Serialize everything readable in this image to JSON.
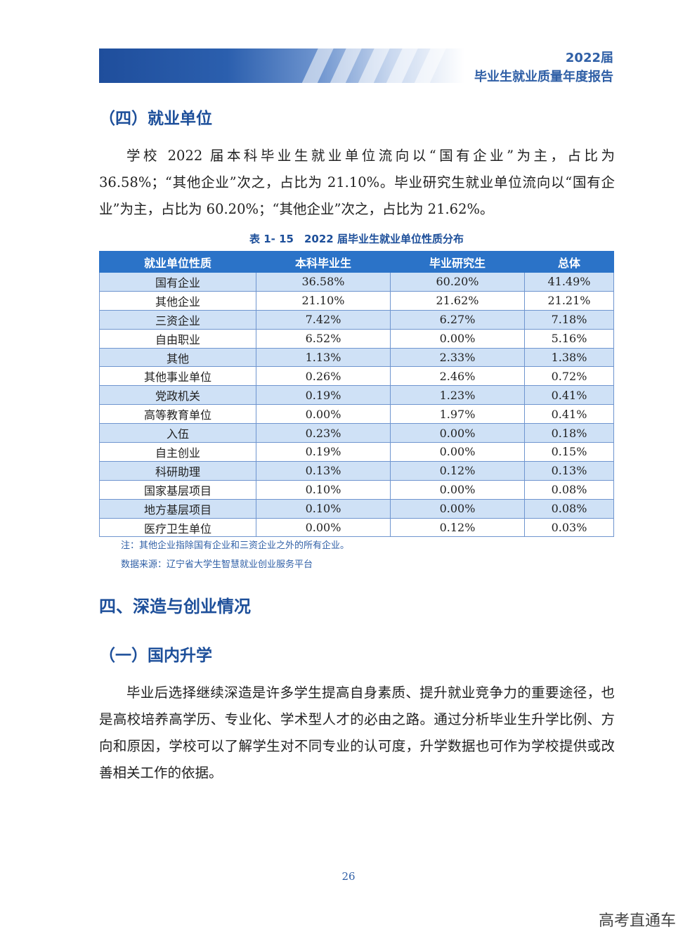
{
  "header": {
    "year": "2022届",
    "title": "毕业生就业质量年度报告"
  },
  "section_employer": {
    "heading": "（四）就业单位",
    "paragraph": "学校 2022 届本科毕业生就业单位流向以“国有企业”为主，占比为 36.58%；“其他企业”次之，占比为 21.10%。毕业研究生就业单位流向以“国有企业”为主，占比为 60.20%；“其他企业”次之，占比为 21.62%。"
  },
  "table": {
    "caption": "表 1- 15　2022 届毕业生就业单位性质分布",
    "headers": [
      "就业单位性质",
      "本科毕业生",
      "毕业研究生",
      "总体"
    ],
    "rows": [
      [
        "国有企业",
        "36.58%",
        "60.20%",
        "41.49%"
      ],
      [
        "其他企业",
        "21.10%",
        "21.62%",
        "21.21%"
      ],
      [
        "三资企业",
        "7.42%",
        "6.27%",
        "7.18%"
      ],
      [
        "自由职业",
        "6.52%",
        "0.00%",
        "5.16%"
      ],
      [
        "其他",
        "1.13%",
        "2.33%",
        "1.38%"
      ],
      [
        "其他事业单位",
        "0.26%",
        "2.46%",
        "0.72%"
      ],
      [
        "党政机关",
        "0.19%",
        "1.23%",
        "0.41%"
      ],
      [
        "高等教育单位",
        "0.00%",
        "1.97%",
        "0.41%"
      ],
      [
        "入伍",
        "0.23%",
        "0.00%",
        "0.18%"
      ],
      [
        "自主创业",
        "0.19%",
        "0.00%",
        "0.15%"
      ],
      [
        "科研助理",
        "0.13%",
        "0.12%",
        "0.13%"
      ],
      [
        "国家基层项目",
        "0.10%",
        "0.00%",
        "0.08%"
      ],
      [
        "地方基层项目",
        "0.10%",
        "0.00%",
        "0.08%"
      ],
      [
        "医疗卫生单位",
        "0.00%",
        "0.12%",
        "0.03%"
      ]
    ],
    "note": "注：其他企业指除国有企业和三资企业之外的所有企业。",
    "source": "数据来源：辽宁省大学生智慧就业创业服务平台"
  },
  "section_study": {
    "heading": "四、深造与创业情况",
    "sub_heading": "（一）国内升学",
    "paragraph": "毕业后选择继续深造是许多学生提高自身素质、提升就业竞争力的重要途径，也是高校培养高学历、专业化、学术型人才的必由之路。通过分析毕业生升学比例、方向和原因，学校可以了解学生对不同专业的认可度，升学数据也可作为学校提供或改善相关工作的依据。"
  },
  "footer": {
    "page_number": "26",
    "watermark": "高考直通车"
  }
}
